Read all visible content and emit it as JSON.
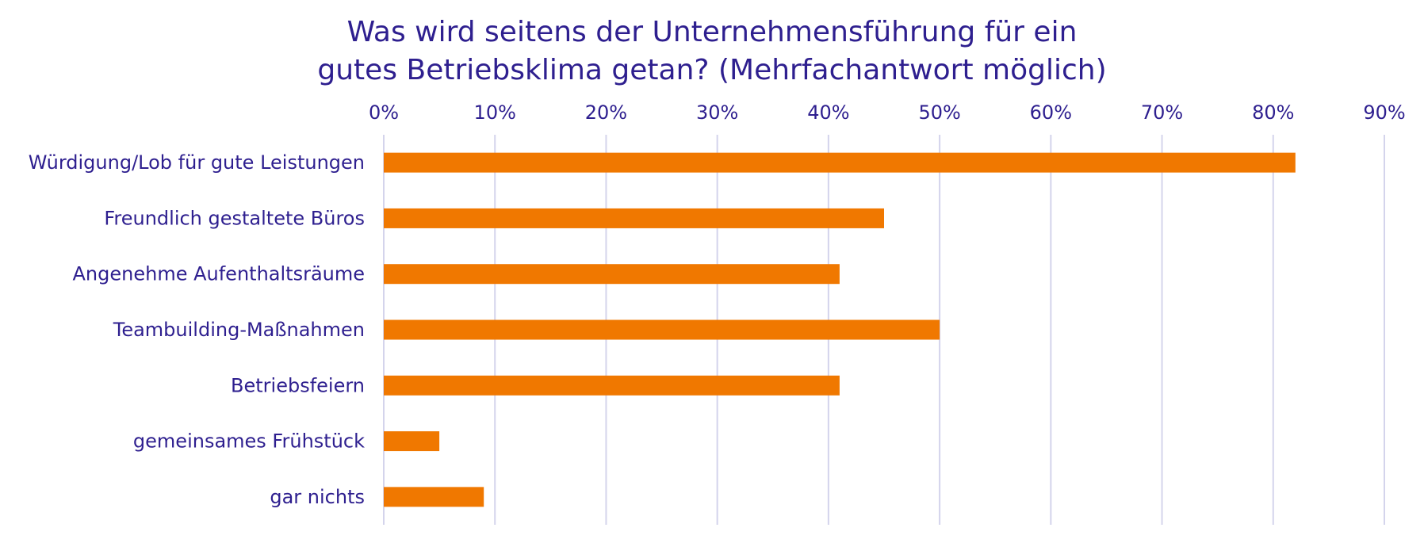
{
  "colors": {
    "text": "#2e1f8f",
    "bar": "#f07800",
    "grid": "#d4d4ec",
    "background": "#ffffff"
  },
  "chart_data": {
    "type": "bar",
    "orientation": "horizontal",
    "title_lines": [
      "Was wird seitens der Unternehmensführung für ein",
      "gutes Betriebsklima getan? (Mehrfachantwort möglich)"
    ],
    "xlabel": "",
    "ylabel": "",
    "categories": [
      "Würdigung/Lob für gute Leistungen",
      "Freundlich gestaltete Büros",
      "Angenehme Aufenthaltsräume",
      "Teambuilding-Maßnahmen",
      "Betriebsfeiern",
      "gemeinsames Frühstück",
      "gar nichts"
    ],
    "values": [
      82,
      45,
      41,
      50,
      41,
      5,
      9
    ],
    "unit": "%",
    "xlim": [
      0,
      90
    ],
    "ticks": [
      0,
      10,
      20,
      30,
      40,
      50,
      60,
      70,
      80,
      90
    ],
    "tick_labels": [
      "0%",
      "10%",
      "20%",
      "30%",
      "40%",
      "50%",
      "60%",
      "70%",
      "80%",
      "90%"
    ],
    "axis_position": "top",
    "grid": true,
    "legend": "none"
  }
}
